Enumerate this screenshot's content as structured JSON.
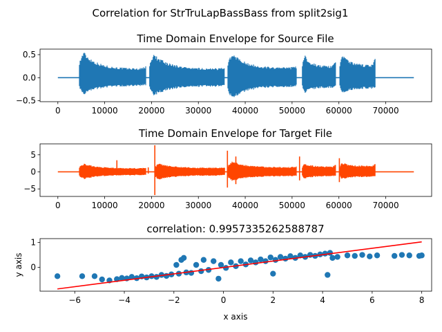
{
  "figure": {
    "suptitle": "Correlation for StrTruLapBassBass from split2sig1"
  },
  "chart_data": [
    {
      "type": "line",
      "title": "Time Domain Envelope for Source File",
      "xlabel": "",
      "ylabel": "",
      "color": "#1f77b4",
      "xlim": [
        -3800,
        79800
      ],
      "ylim": [
        -0.52,
        0.62
      ],
      "xticks": [
        0,
        10000,
        20000,
        30000,
        40000,
        50000,
        60000,
        70000
      ],
      "xtick_labels": [
        "0",
        "10000",
        "20000",
        "30000",
        "40000",
        "50000",
        "60000",
        "70000"
      ],
      "yticks": [
        0.5,
        0.0,
        -0.5
      ],
      "ytick_labels": [
        "0.5",
        "0.0",
        "−0.5"
      ],
      "baseline": 0,
      "x_range": [
        0,
        76000
      ],
      "bursts": [
        {
          "start": 4600,
          "end": 18800,
          "peak_pos": 0.58,
          "peak_neg": -0.38,
          "sustain_pos": 0.2,
          "sustain_neg": -0.18,
          "end_pos": 0.25
        },
        {
          "start": 19600,
          "end": 35600,
          "peak_pos": 0.52,
          "peak_neg": -0.4,
          "sustain_pos": 0.2,
          "sustain_neg": -0.19,
          "end_pos": 0.22
        },
        {
          "start": 36300,
          "end": 51000,
          "peak_pos": 0.55,
          "peak_neg": -0.48,
          "sustain_pos": 0.22,
          "sustain_neg": -0.2,
          "end_pos": 0.25
        },
        {
          "start": 52200,
          "end": 59300,
          "peak_pos": 0.52,
          "peak_neg": -0.35,
          "sustain_pos": 0.25,
          "sustain_neg": -0.22,
          "end_pos": 0.4
        },
        {
          "start": 60200,
          "end": 67800,
          "peak_pos": 0.52,
          "peak_neg": -0.35,
          "sustain_pos": 0.28,
          "sustain_neg": -0.24,
          "end_pos": 0.45
        }
      ]
    },
    {
      "type": "line",
      "title": "Time Domain Envelope for Target File",
      "xlabel": "",
      "ylabel": "",
      "color": "#ff4500",
      "xlim": [
        -3800,
        79800
      ],
      "ylim": [
        -7.2,
        8.2
      ],
      "xticks": [
        0,
        10000,
        20000,
        30000,
        40000,
        50000,
        60000,
        70000
      ],
      "xtick_labels": [
        "0",
        "10000",
        "20000",
        "30000",
        "40000",
        "50000",
        "60000",
        "70000"
      ],
      "yticks": [
        5,
        0,
        -5
      ],
      "ytick_labels": [
        "5",
        "0",
        "−5"
      ],
      "baseline": 0,
      "x_range": [
        0,
        76000
      ],
      "spikes": [
        {
          "x": 12600,
          "top": 3.4,
          "bottom": -0.6
        },
        {
          "x": 19300,
          "top": 1.3,
          "bottom": -0.5
        },
        {
          "x": 20700,
          "top": 7.8,
          "bottom": -6.8
        },
        {
          "x": 36200,
          "top": 6.2,
          "bottom": -4.6
        },
        {
          "x": 38000,
          "top": 4.5,
          "bottom": -3.6
        },
        {
          "x": 51600,
          "top": 4.5,
          "bottom": -2.5
        },
        {
          "x": 60100,
          "top": 4.0,
          "bottom": -3.0
        }
      ],
      "bursts": [
        {
          "start": 4600,
          "end": 18800,
          "peak_pos": 2.5,
          "peak_neg": -2.2,
          "sustain_pos": 1.1,
          "sustain_neg": -1.0,
          "end_pos": 1.2
        },
        {
          "start": 20700,
          "end": 35600,
          "peak_pos": 2.6,
          "peak_neg": -2.4,
          "sustain_pos": 1.2,
          "sustain_neg": -1.1,
          "end_pos": 1.4
        },
        {
          "start": 36300,
          "end": 51000,
          "peak_pos": 3.2,
          "peak_neg": -2.8,
          "sustain_pos": 1.4,
          "sustain_neg": -1.3,
          "end_pos": 1.6
        },
        {
          "start": 52200,
          "end": 59300,
          "peak_pos": 2.6,
          "peak_neg": -2.2,
          "sustain_pos": 1.6,
          "sustain_neg": -1.3,
          "end_pos": 2.2
        },
        {
          "start": 60200,
          "end": 67800,
          "peak_pos": 2.8,
          "peak_neg": -2.2,
          "sustain_pos": 1.8,
          "sustain_neg": -1.5,
          "end_pos": 2.6
        }
      ]
    },
    {
      "type": "scatter",
      "title": "correlation: 0.9957335262588787",
      "xlabel": "x axis",
      "ylabel": "y axis",
      "color": "#1f77b4",
      "line_color": "#ff0000",
      "xlim": [
        -7.4,
        8.4
      ],
      "ylim": [
        -0.95,
        1.15
      ],
      "xticks": [
        -6,
        -4,
        -2,
        0,
        2,
        4,
        6,
        8
      ],
      "xtick_labels": [
        "−6",
        "−4",
        "−2",
        "0",
        "2",
        "4",
        "6",
        "8"
      ],
      "yticks": [
        1,
        0
      ],
      "ytick_labels": [
        "1",
        "0"
      ],
      "fit_line": {
        "x": [
          -6.7,
          8.0
        ],
        "y": [
          -0.86,
          1.02
        ]
      },
      "points": [
        [
          -6.7,
          -0.35
        ],
        [
          -5.7,
          -0.35
        ],
        [
          -5.2,
          -0.35
        ],
        [
          -4.9,
          -0.48
        ],
        [
          -4.3,
          -0.47
        ],
        [
          -4.1,
          -0.42
        ],
        [
          -3.9,
          -0.44
        ],
        [
          -3.7,
          -0.38
        ],
        [
          -3.5,
          -0.43
        ],
        [
          -3.3,
          -0.36
        ],
        [
          -3.1,
          -0.4
        ],
        [
          -2.9,
          -0.35
        ],
        [
          -2.7,
          -0.38
        ],
        [
          -2.5,
          -0.3
        ],
        [
          -2.3,
          -0.34
        ],
        [
          -2.1,
          -0.28
        ],
        [
          -1.9,
          0.1
        ],
        [
          -1.8,
          -0.25
        ],
        [
          -1.7,
          0.3
        ],
        [
          -1.6,
          0.38
        ],
        [
          -1.5,
          -0.2
        ],
        [
          -1.3,
          -0.22
        ],
        [
          -1.1,
          0.1
        ],
        [
          -0.9,
          -0.15
        ],
        [
          -0.8,
          0.3
        ],
        [
          -0.6,
          -0.1
        ],
        [
          -0.4,
          0.25
        ],
        [
          -0.2,
          -0.45
        ],
        [
          -0.1,
          0.1
        ],
        [
          0.1,
          -0.02
        ],
        [
          0.3,
          0.2
        ],
        [
          0.5,
          0.05
        ],
        [
          0.7,
          0.25
        ],
        [
          0.9,
          0.12
        ],
        [
          1.1,
          0.28
        ],
        [
          1.3,
          0.2
        ],
        [
          1.5,
          0.32
        ],
        [
          1.7,
          0.25
        ],
        [
          1.9,
          0.4
        ],
        [
          2.1,
          0.3
        ],
        [
          2.3,
          0.42
        ],
        [
          2.5,
          0.35
        ],
        [
          2.7,
          0.45
        ],
        [
          2.9,
          0.38
        ],
        [
          3.1,
          0.48
        ],
        [
          3.3,
          0.42
        ],
        [
          3.5,
          0.5
        ],
        [
          3.7,
          0.46
        ],
        [
          3.9,
          0.52
        ],
        [
          4.1,
          0.55
        ],
        [
          4.3,
          0.58
        ],
        [
          4.4,
          0.38
        ],
        [
          4.6,
          0.42
        ],
        [
          5.0,
          0.48
        ],
        [
          5.3,
          0.46
        ],
        [
          5.6,
          0.5
        ],
        [
          5.9,
          0.44
        ],
        [
          6.2,
          0.48
        ],
        [
          6.9,
          0.46
        ],
        [
          7.2,
          0.5
        ],
        [
          7.5,
          0.48
        ],
        [
          7.9,
          0.46
        ],
        [
          8.0,
          0.48
        ],
        [
          2.0,
          -0.25
        ],
        [
          4.2,
          -0.3
        ],
        [
          -4.6,
          -0.52
        ]
      ]
    }
  ]
}
